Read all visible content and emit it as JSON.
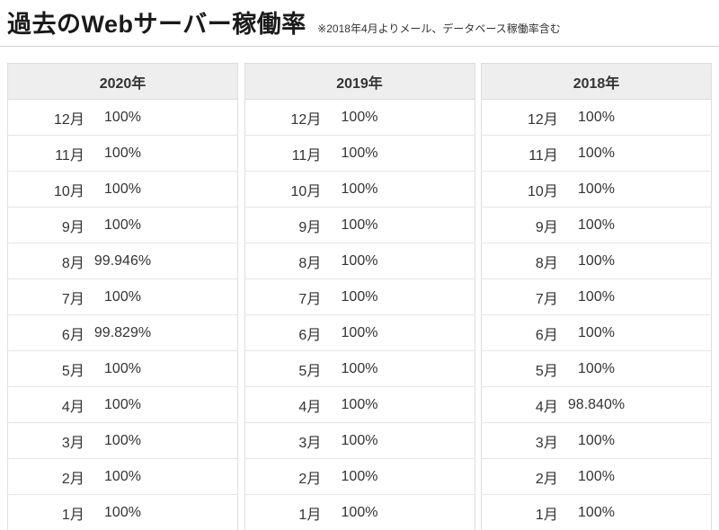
{
  "header": {
    "title": "過去のWebサーバー稼働率",
    "note": "※2018年4月よりメール、データベース稼働率含む"
  },
  "tables": [
    {
      "year": "2020年",
      "rows": [
        {
          "month": "12月",
          "value": "100%"
        },
        {
          "month": "11月",
          "value": "100%"
        },
        {
          "month": "10月",
          "value": "100%"
        },
        {
          "month": "9月",
          "value": "100%"
        },
        {
          "month": "8月",
          "value": "99.946%"
        },
        {
          "month": "7月",
          "value": "100%"
        },
        {
          "month": "6月",
          "value": "99.829%"
        },
        {
          "month": "5月",
          "value": "100%"
        },
        {
          "month": "4月",
          "value": "100%"
        },
        {
          "month": "3月",
          "value": "100%"
        },
        {
          "month": "2月",
          "value": "100%"
        },
        {
          "month": "1月",
          "value": "100%"
        }
      ]
    },
    {
      "year": "2019年",
      "rows": [
        {
          "month": "12月",
          "value": "100%"
        },
        {
          "month": "11月",
          "value": "100%"
        },
        {
          "month": "10月",
          "value": "100%"
        },
        {
          "month": "9月",
          "value": "100%"
        },
        {
          "month": "8月",
          "value": "100%"
        },
        {
          "month": "7月",
          "value": "100%"
        },
        {
          "month": "6月",
          "value": "100%"
        },
        {
          "month": "5月",
          "value": "100%"
        },
        {
          "month": "4月",
          "value": "100%"
        },
        {
          "month": "3月",
          "value": "100%"
        },
        {
          "month": "2月",
          "value": "100%"
        },
        {
          "month": "1月",
          "value": "100%"
        }
      ]
    },
    {
      "year": "2018年",
      "rows": [
        {
          "month": "12月",
          "value": "100%"
        },
        {
          "month": "11月",
          "value": "100%"
        },
        {
          "month": "10月",
          "value": "100%"
        },
        {
          "month": "9月",
          "value": "100%"
        },
        {
          "month": "8月",
          "value": "100%"
        },
        {
          "month": "7月",
          "value": "100%"
        },
        {
          "month": "6月",
          "value": "100%"
        },
        {
          "month": "5月",
          "value": "100%"
        },
        {
          "month": "4月",
          "value": "98.840%"
        },
        {
          "month": "3月",
          "value": "100%"
        },
        {
          "month": "2月",
          "value": "100%"
        },
        {
          "month": "1月",
          "value": "100%"
        }
      ]
    }
  ],
  "colors": {
    "header_bg": "#eeeeee",
    "table_border": "#dddddd",
    "row_border": "#e5e5e5",
    "divider": "#cccccc",
    "text": "#333333",
    "title_text": "#1a1a1a",
    "background": "#ffffff"
  }
}
